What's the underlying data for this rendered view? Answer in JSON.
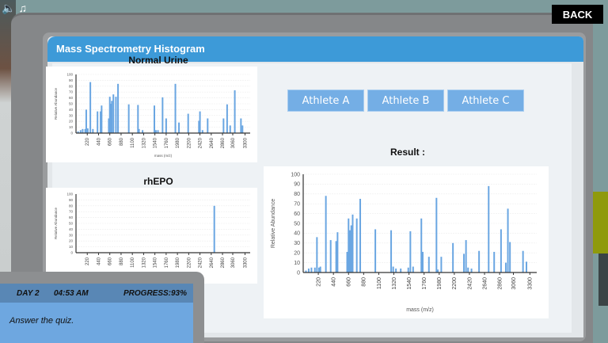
{
  "top_icons": {
    "sound": "speaker-icon",
    "music": "music-note-icon"
  },
  "back_button": {
    "label": "BACK"
  },
  "panel": {
    "title": "Mass Spectrometry Histogram"
  },
  "charts": {
    "normal_urine": {
      "title": "Normal Urine"
    },
    "rhepo": {
      "title": "rhEPO"
    },
    "result": {
      "title": "Result :"
    }
  },
  "athlete_buttons": [
    {
      "label": "Athlete A"
    },
    {
      "label": "Athlete B"
    },
    {
      "label": "Athlete C"
    }
  ],
  "hud": {
    "day": "DAY 2",
    "time": "04:53 AM",
    "progress_label": "PROGRESS:",
    "progress_value": "93%",
    "message": "Answer the quiz."
  },
  "chart_data": [
    {
      "type": "bar",
      "title": "Normal Urine",
      "xlabel": "mass (m/z)",
      "ylabel": "Relative Abundance",
      "ylim": [
        0,
        100
      ],
      "yticks": [
        0,
        10,
        20,
        30,
        40,
        50,
        60,
        70,
        80,
        90,
        100
      ],
      "xticks": [
        220,
        440,
        660,
        880,
        1100,
        1320,
        1540,
        1760,
        1980,
        2200,
        2420,
        2640,
        2860,
        3060,
        3300
      ],
      "x": [
        40,
        90,
        130,
        180,
        200,
        230,
        280,
        330,
        420,
        480,
        500,
        640,
        660,
        680,
        700,
        730,
        780,
        820,
        1030,
        1210,
        1230,
        1300,
        1530,
        1560,
        1600,
        1690,
        1760,
        1940,
        2010,
        2190,
        2400,
        2420,
        2470,
        2570,
        2880,
        2950,
        3010,
        3100,
        3220,
        3250
      ],
      "values": [
        3,
        5,
        7,
        7,
        40,
        8,
        87,
        7,
        37,
        37,
        47,
        25,
        62,
        50,
        55,
        66,
        62,
        84,
        49,
        48,
        7,
        5,
        47,
        5,
        5,
        61,
        25,
        84,
        18,
        33,
        21,
        37,
        5,
        25,
        25,
        49,
        13,
        73,
        25,
        13
      ],
      "grid": true
    },
    {
      "type": "bar",
      "title": "rhEPO",
      "xlabel": "",
      "ylabel": "Relative Abundance",
      "ylim": [
        0,
        100
      ],
      "yticks": [
        0,
        10,
        20,
        30,
        40,
        50,
        60,
        70,
        80,
        90,
        100
      ],
      "xticks": [
        220,
        440,
        660,
        880,
        1100,
        1320,
        1540,
        1760,
        1980,
        2200,
        2420,
        2640,
        2860,
        3060,
        3300
      ],
      "x": [
        2700
      ],
      "values": [
        80
      ],
      "grid": true
    },
    {
      "type": "bar",
      "title": "Result :",
      "xlabel": "mass (m/z)",
      "ylabel": "Relative Abundance",
      "ylim": [
        0,
        100
      ],
      "yticks": [
        0,
        10,
        20,
        30,
        40,
        50,
        60,
        70,
        80,
        90,
        100
      ],
      "xticks": [
        220,
        440,
        660,
        880,
        1100,
        1320,
        1540,
        1760,
        1980,
        2200,
        2420,
        2640,
        2860,
        3060,
        3300
      ],
      "x": [
        40,
        80,
        120,
        170,
        200,
        230,
        250,
        330,
        400,
        480,
        500,
        640,
        660,
        680,
        700,
        720,
        780,
        830,
        1050,
        1280,
        1310,
        1350,
        1420,
        1530,
        1560,
        1600,
        1720,
        1740,
        1830,
        1940,
        1960,
        2010,
        2180,
        2340,
        2370,
        2400,
        2450,
        2560,
        2700,
        2780,
        2880,
        2950,
        2980,
        3010,
        3200,
        3250
      ],
      "values": [
        2,
        4,
        5,
        5,
        36,
        5,
        6,
        78,
        33,
        32,
        41,
        21,
        55,
        43,
        48,
        59,
        55,
        75,
        44,
        43,
        6,
        4,
        4,
        5,
        42,
        6,
        55,
        21,
        16,
        76,
        3,
        16,
        30,
        19,
        33,
        5,
        4,
        22,
        88,
        21,
        44,
        10,
        65,
        31,
        22,
        11
      ],
      "grid": true
    }
  ]
}
